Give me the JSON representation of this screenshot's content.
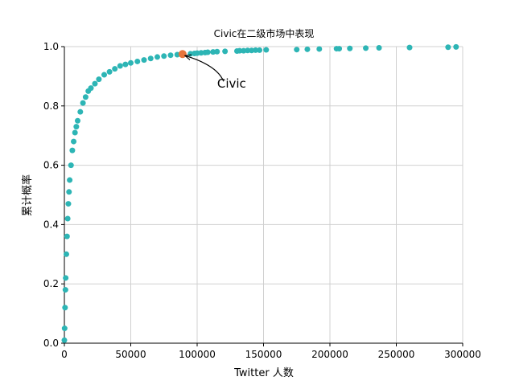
{
  "chart_data": {
    "type": "scatter",
    "title": "Civic在二级市场中表现",
    "xlabel": "Twitter 人数",
    "ylabel": "累计概率",
    "grid": true,
    "color": "#2db5b5",
    "x": [
      0,
      200,
      500,
      800,
      1000,
      1500,
      2000,
      2500,
      3000,
      3500,
      4000,
      5000,
      6000,
      7000,
      8000,
      9000,
      10000,
      12000,
      14000,
      16000,
      18000,
      20000,
      23000,
      26000,
      30000,
      34000,
      38000,
      42000,
      46000,
      50000,
      55000,
      60000,
      65000,
      70000,
      75000,
      80000,
      85000,
      95000,
      98000,
      100000,
      103000,
      106000,
      108000,
      112000,
      115000,
      121000,
      130000,
      132000,
      135000,
      138000,
      141000,
      144000,
      147000,
      152000,
      175000,
      183000,
      192000,
      205000,
      207000,
      215000,
      227000,
      237000,
      260000,
      289000,
      295000
    ],
    "y": [
      0.01,
      0.05,
      0.12,
      0.18,
      0.22,
      0.3,
      0.36,
      0.42,
      0.47,
      0.51,
      0.55,
      0.6,
      0.65,
      0.68,
      0.71,
      0.73,
      0.75,
      0.78,
      0.81,
      0.83,
      0.85,
      0.86,
      0.875,
      0.89,
      0.905,
      0.915,
      0.925,
      0.935,
      0.94,
      0.945,
      0.95,
      0.955,
      0.96,
      0.965,
      0.968,
      0.971,
      0.973,
      0.976,
      0.977,
      0.978,
      0.979,
      0.98,
      0.981,
      0.982,
      0.983,
      0.984,
      0.985,
      0.986,
      0.986,
      0.987,
      0.987,
      0.988,
      0.988,
      0.989,
      0.99,
      0.991,
      0.992,
      0.993,
      0.993,
      0.994,
      0.995,
      0.996,
      0.997,
      0.998,
      0.999
    ],
    "highlight": {
      "x": 89000,
      "y": 0.975,
      "color": "#e8743b",
      "label": "Civic"
    },
    "xlim": [
      0,
      300000
    ],
    "ylim": [
      0,
      1
    ],
    "xticks": [
      0,
      50000,
      100000,
      150000,
      200000,
      250000,
      300000
    ],
    "yticks": [
      {
        "value": 0,
        "label": "0.0"
      },
      0.2,
      0.4,
      0.6,
      0.8,
      {
        "value": 1,
        "label": "1.0"
      }
    ]
  }
}
